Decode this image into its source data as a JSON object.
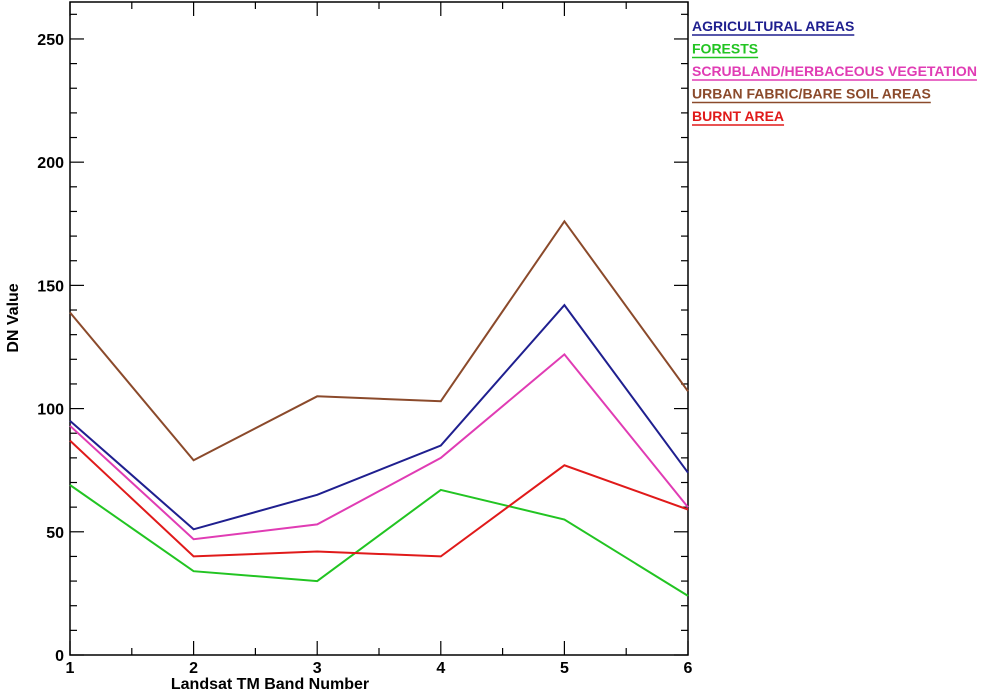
{
  "chart_data": {
    "type": "line",
    "title": "",
    "xlabel": "Landsat TM Band Number",
    "ylabel": "DN Value",
    "x": [
      1,
      2,
      3,
      4,
      5,
      6
    ],
    "xlim": [
      1,
      6
    ],
    "ylim": [
      0,
      265
    ],
    "xticks": [
      "1",
      "2",
      "3",
      "4",
      "5",
      "6"
    ],
    "yticks": [
      "0",
      "50",
      "100",
      "150",
      "200",
      "250"
    ],
    "ytick_values": [
      0,
      50,
      100,
      150,
      200,
      250
    ],
    "grid": false,
    "legend_position": "top-right, outside plot",
    "series": [
      {
        "name": "AGRICULTURAL AREAS",
        "color": "#1f1f8f",
        "values": [
          95,
          51,
          65,
          85,
          142,
          74
        ]
      },
      {
        "name": "FORESTS",
        "color": "#22c422",
        "values": [
          69,
          34,
          30,
          67,
          55,
          24
        ]
      },
      {
        "name": "SCRUBLAND/HERBACEOUS VEGETATION",
        "color": "#e03cb4",
        "values": [
          93,
          47,
          53,
          80,
          122,
          60
        ]
      },
      {
        "name": "URBAN FABRIC/BARE SOIL AREAS",
        "color": "#8b4a2b",
        "values": [
          139,
          79,
          105,
          103,
          176,
          107
        ]
      },
      {
        "name": "BURNT AREA",
        "color": "#e01a1a",
        "values": [
          87,
          40,
          42,
          40,
          77,
          59
        ]
      }
    ]
  }
}
